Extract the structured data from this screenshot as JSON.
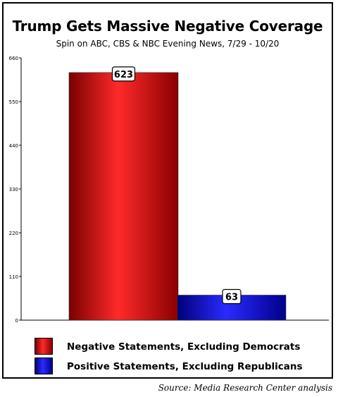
{
  "title": "Trump Gets Massive Negative Coverage",
  "subtitle": "Spin on ABC, CBS & NBC Evening News, 7/29 - 10/20",
  "source": "Source: Media Research Center analysis",
  "legend": [
    {
      "label": "Negative Statements, Excluding Democrats",
      "color": "#cc0000"
    },
    {
      "label": "Positive Statements, Excluding Republicans",
      "color": "#0000cc"
    }
  ],
  "chart_data": {
    "type": "bar",
    "categories": [
      "Negative Statements, Excluding Democrats",
      "Positive Statements, Excluding Republicans"
    ],
    "values": [
      623,
      63
    ],
    "colors": [
      "#cc0000",
      "#0000cc"
    ],
    "title": "Trump Gets Massive Negative Coverage",
    "subtitle": "Spin on ABC, CBS & NBC Evening News, 7/29 - 10/20",
    "xlabel": "",
    "ylabel": "",
    "ylim": [
      0,
      660
    ],
    "yticks": [
      "0",
      "110",
      "220",
      "330",
      "440",
      "550",
      "660"
    ],
    "data_labels": [
      "623",
      "63"
    ],
    "grid": false,
    "legend_position": "bottom"
  }
}
